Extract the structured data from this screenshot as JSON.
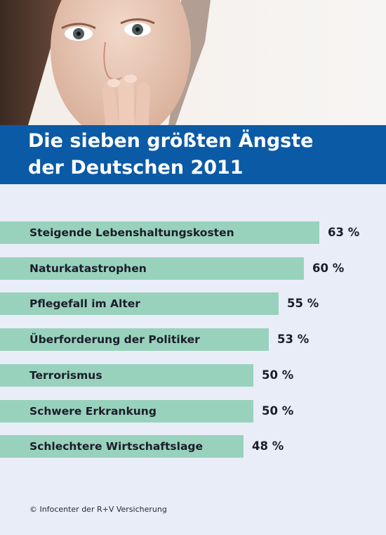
{
  "header": {
    "title_line1": "Die sieben größten Ängste",
    "title_line2": "der Deutschen 2011"
  },
  "footer": {
    "source": "© Infocenter der R+V Versicherung"
  },
  "colors": {
    "band": "#0b5aa6",
    "bar": "#98d2bc",
    "background": "#e9edf7"
  },
  "chart_data": {
    "type": "bar",
    "orientation": "horizontal",
    "title": "Die sieben größten Ängste der Deutschen 2011",
    "categories": [
      "Steigende Lebenshaltungskosten",
      "Naturkatastrophen",
      "Pflegefall im Alter",
      "Überforderung der Politiker",
      "Terrorismus",
      "Schwere Erkrankung",
      "Schlechtere Wirtschaftslage"
    ],
    "values": [
      63,
      60,
      55,
      53,
      50,
      50,
      48
    ],
    "value_labels": [
      "63 %",
      "60 %",
      "55 %",
      "53 %",
      "50 %",
      "50 %",
      "48 %"
    ],
    "unit": "%",
    "grid": false,
    "legend": "none"
  }
}
